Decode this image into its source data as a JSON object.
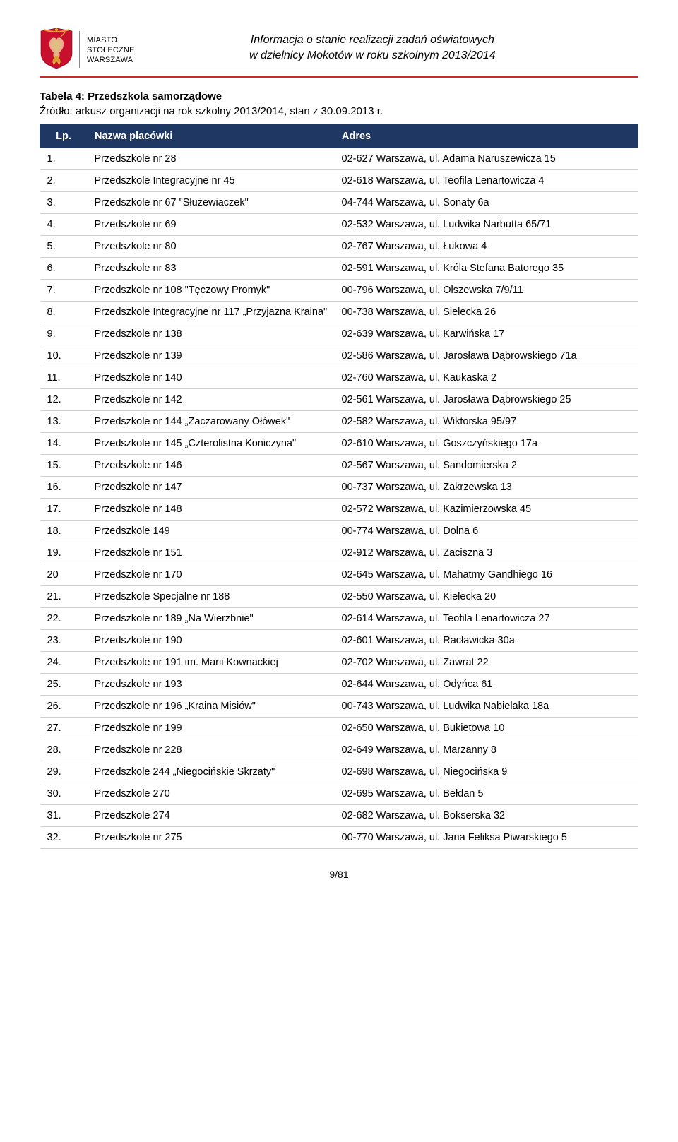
{
  "header": {
    "brand_line1": "MIASTO",
    "brand_line2": "STOŁECZNE",
    "brand_line3": "WARSZAWA",
    "doc_title_line1": "Informacja o stanie realizacji zadań oświatowych",
    "doc_title_line2": "w dzielnicy Mokotów w roku szkolnym 2013/2014"
  },
  "colors": {
    "header_bg": "#1f3763",
    "header_fg": "#ffffff",
    "rule": "#c72a2a",
    "row_border": "#cfcfcf",
    "crest_red": "#c8102e",
    "crest_gold": "#e0a030",
    "crest_flesh": "#e9b28a"
  },
  "table_meta": {
    "title": "Tabela 4: Przedszkola samorządowe",
    "source": "Źródło: arkusz organizacji na rok szkolny 2013/2014, stan z 30.09.2013 r.",
    "columns": [
      "Lp.",
      "Nazwa placówki",
      "Adres"
    ]
  },
  "rows": [
    {
      "lp": "1.",
      "name": "Przedszkole nr 28",
      "addr": "02-627 Warszawa, ul. Adama Naruszewicza 15"
    },
    {
      "lp": "2.",
      "name": "Przedszkole Integracyjne nr 45",
      "addr": "02-618 Warszawa, ul. Teofila Lenartowicza 4"
    },
    {
      "lp": "3.",
      "name": "Przedszkole nr 67 \"Służewiaczek\"",
      "addr": "04-744 Warszawa, ul. Sonaty 6a"
    },
    {
      "lp": "4.",
      "name": "Przedszkole nr 69",
      "addr": "02-532 Warszawa, ul. Ludwika Narbutta 65/71"
    },
    {
      "lp": "5.",
      "name": "Przedszkole nr 80",
      "addr": "02-767 Warszawa, ul. Łukowa 4"
    },
    {
      "lp": "6.",
      "name": "Przedszkole nr 83",
      "addr": "02-591 Warszawa, ul. Króla Stefana Batorego 35"
    },
    {
      "lp": "7.",
      "name": "Przedszkole nr 108 \"Tęczowy Promyk\"",
      "addr": "00-796 Warszawa, ul. Olszewska 7/9/11"
    },
    {
      "lp": "8.",
      "name": "Przedszkole Integracyjne nr 117 „Przyjazna Kraina\"",
      "addr": "00-738 Warszawa, ul. Sielecka 26"
    },
    {
      "lp": "9.",
      "name": "Przedszkole nr 138",
      "addr": "02-639 Warszawa, ul. Karwińska 17"
    },
    {
      "lp": "10.",
      "name": "Przedszkole nr 139",
      "addr": "02-586 Warszawa, ul. Jarosława Dąbrowskiego 71a"
    },
    {
      "lp": "11.",
      "name": "Przedszkole nr 140",
      "addr": "02-760 Warszawa, ul. Kaukaska 2"
    },
    {
      "lp": "12.",
      "name": "Przedszkole nr 142",
      "addr": "02-561 Warszawa, ul. Jarosława Dąbrowskiego 25"
    },
    {
      "lp": "13.",
      "name": "Przedszkole nr 144 „Zaczarowany Ołówek\"",
      "addr": "02-582 Warszawa, ul. Wiktorska 95/97"
    },
    {
      "lp": "14.",
      "name": "Przedszkole nr 145 „Czterolistna Koniczyna\"",
      "addr": "02-610 Warszawa, ul. Goszczyńskiego 17a"
    },
    {
      "lp": "15.",
      "name": "Przedszkole nr 146",
      "addr": "02-567 Warszawa, ul. Sandomierska 2"
    },
    {
      "lp": "16.",
      "name": "Przedszkole nr 147",
      "addr": "00-737 Warszawa, ul. Zakrzewska 13"
    },
    {
      "lp": "17.",
      "name": "Przedszkole nr 148",
      "addr": "02-572 Warszawa, ul. Kazimierzowska 45"
    },
    {
      "lp": "18.",
      "name": "Przedszkole 149",
      "addr": "00-774 Warszawa, ul. Dolna 6"
    },
    {
      "lp": "19.",
      "name": "Przedszkole nr 151",
      "addr": "02-912 Warszawa, ul. Zaciszna 3"
    },
    {
      "lp": "20",
      "name": "Przedszkole nr 170",
      "addr": "02-645 Warszawa, ul. Mahatmy Gandhiego 16"
    },
    {
      "lp": "21.",
      "name": "Przedszkole Specjalne nr 188",
      "addr": "02-550 Warszawa, ul. Kielecka 20"
    },
    {
      "lp": "22.",
      "name": "Przedszkole nr 189 „Na Wierzbnie\"",
      "addr": "02-614 Warszawa, ul. Teofila Lenartowicza 27"
    },
    {
      "lp": "23.",
      "name": "Przedszkole nr 190",
      "addr": "02-601 Warszawa, ul. Racławicka 30a"
    },
    {
      "lp": "24.",
      "name": "Przedszkole nr 191 im. Marii Kownackiej",
      "addr": "02-702 Warszawa, ul. Zawrat 22"
    },
    {
      "lp": "25.",
      "name": "Przedszkole nr 193",
      "addr": "02-644 Warszawa, ul. Odyńca 61"
    },
    {
      "lp": "26.",
      "name": "Przedszkole nr 196 „Kraina Misiów\"",
      "addr": "00-743 Warszawa, ul. Ludwika Nabielaka 18a"
    },
    {
      "lp": "27.",
      "name": "Przedszkole nr 199",
      "addr": "02-650 Warszawa, ul. Bukietowa 10"
    },
    {
      "lp": "28.",
      "name": "Przedszkole nr 228",
      "addr": "02-649 Warszawa, ul. Marzanny 8"
    },
    {
      "lp": "29.",
      "name": "Przedszkole 244 „Niegocińskie Skrzaty\"",
      "addr": "02-698 Warszawa, ul. Niegocińska 9"
    },
    {
      "lp": "30.",
      "name": "Przedszkole 270",
      "addr": "02-695 Warszawa, ul. Bełdan 5"
    },
    {
      "lp": "31.",
      "name": "Przedszkole 274",
      "addr": "02-682 Warszawa, ul. Bokserska 32"
    },
    {
      "lp": "32.",
      "name": "Przedszkole nr 275",
      "addr": "00-770 Warszawa, ul. Jana Feliksa Piwarskiego 5"
    }
  ],
  "footer": {
    "page": "9/81"
  }
}
